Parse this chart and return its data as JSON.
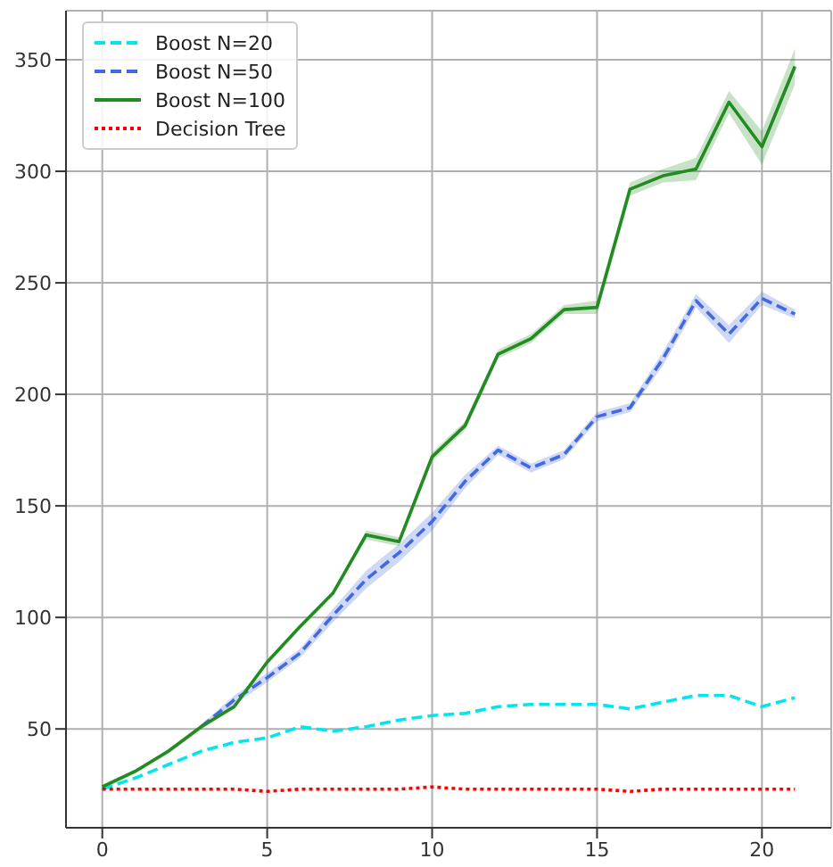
{
  "chart_data": {
    "type": "line",
    "x": [
      0,
      1,
      2,
      3,
      4,
      5,
      6,
      7,
      8,
      9,
      10,
      11,
      12,
      13,
      14,
      15,
      16,
      17,
      18,
      19,
      20,
      21
    ],
    "series": [
      {
        "name": "Boost N=20",
        "color": "#00e5ee",
        "line_style": "dashed",
        "values": [
          23,
          28,
          34,
          40,
          44,
          46,
          51,
          49,
          51,
          54,
          56,
          57,
          60,
          61,
          61,
          61,
          59,
          62,
          65,
          65,
          60,
          64
        ]
      },
      {
        "name": "Boost N=50",
        "color": "#4169e1",
        "line_style": "dashed",
        "values": [
          null,
          null,
          null,
          51,
          63,
          73,
          84,
          101,
          117,
          129,
          143,
          161,
          175,
          167,
          173,
          190,
          194,
          216,
          242,
          227,
          243,
          236
        ],
        "lower": [
          null,
          null,
          null,
          50,
          61,
          71,
          82,
          98,
          113,
          125,
          139,
          158,
          173,
          165,
          171,
          188,
          192,
          213,
          239,
          223,
          240,
          234
        ],
        "upper": [
          null,
          null,
          null,
          52,
          65,
          75,
          86,
          104,
          121,
          133,
          147,
          164,
          177,
          169,
          175,
          192,
          196,
          219,
          245,
          231,
          246,
          238
        ]
      },
      {
        "name": "Boost N=100",
        "color": "#228b22",
        "line_style": "solid",
        "values": [
          24,
          31,
          40,
          51,
          60,
          80,
          96,
          111,
          137,
          134,
          172,
          186,
          218,
          225,
          238,
          239,
          292,
          298,
          301,
          331,
          311,
          347
        ],
        "lower": [
          23,
          30,
          39,
          50,
          59,
          79,
          95,
          110,
          135,
          132,
          170,
          184,
          216,
          223,
          236,
          236,
          289,
          295,
          296,
          326,
          303,
          339
        ],
        "upper": [
          25,
          32,
          41,
          52,
          61,
          81,
          97,
          112,
          139,
          136,
          174,
          188,
          220,
          227,
          240,
          242,
          295,
          301,
          306,
          336,
          318,
          355
        ]
      },
      {
        "name": "Decision Tree",
        "color": "#ff0000",
        "line_style": "dotted",
        "values": [
          23,
          23,
          23,
          23,
          23,
          22,
          23,
          23,
          23,
          23,
          24,
          23,
          23,
          23,
          23,
          23,
          22,
          23,
          23,
          23,
          23,
          23
        ]
      }
    ],
    "xlim": [
      -1.1,
      22.1
    ],
    "ylim": [
      5.7,
      372
    ],
    "xticks": [
      0,
      5,
      10,
      15,
      20
    ],
    "yticks": [
      50,
      100,
      150,
      200,
      250,
      300,
      350
    ],
    "grid": true,
    "legend": "top left",
    "marker": "none"
  }
}
